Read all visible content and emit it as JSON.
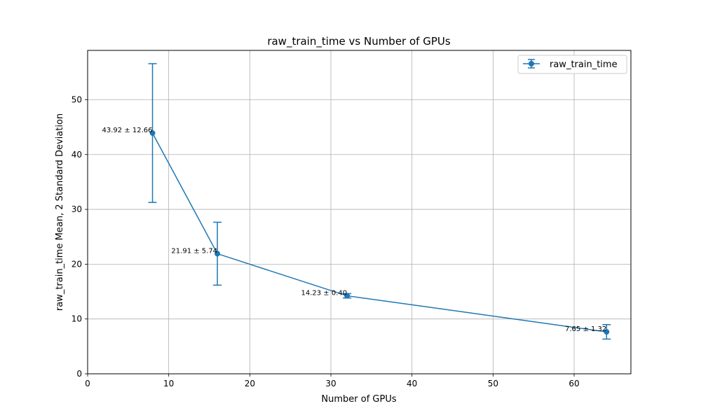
{
  "chart_data": {
    "type": "line",
    "title": "raw_train_time vs Number of GPUs",
    "xlabel": "Number of GPUs",
    "ylabel": "raw_train_time Mean, 2 Standard Deviation",
    "xlim": [
      0,
      67
    ],
    "ylim": [
      0,
      59
    ],
    "xticks": [
      0,
      10,
      20,
      30,
      40,
      50,
      60
    ],
    "yticks": [
      0,
      10,
      20,
      30,
      40,
      50
    ],
    "grid": true,
    "legend": {
      "placement": "top-right"
    },
    "series": [
      {
        "name": "raw_train_time",
        "color": "#1f77b4",
        "x": [
          8,
          16,
          32,
          64
        ],
        "y": [
          43.92,
          21.91,
          14.23,
          7.65
        ],
        "error": [
          12.66,
          5.74,
          0.4,
          1.32
        ],
        "labels": [
          "43.92 ± 12.66",
          "21.91 ± 5.74",
          "14.23 ± 0.40",
          "7.65 ± 1.32"
        ]
      }
    ]
  }
}
